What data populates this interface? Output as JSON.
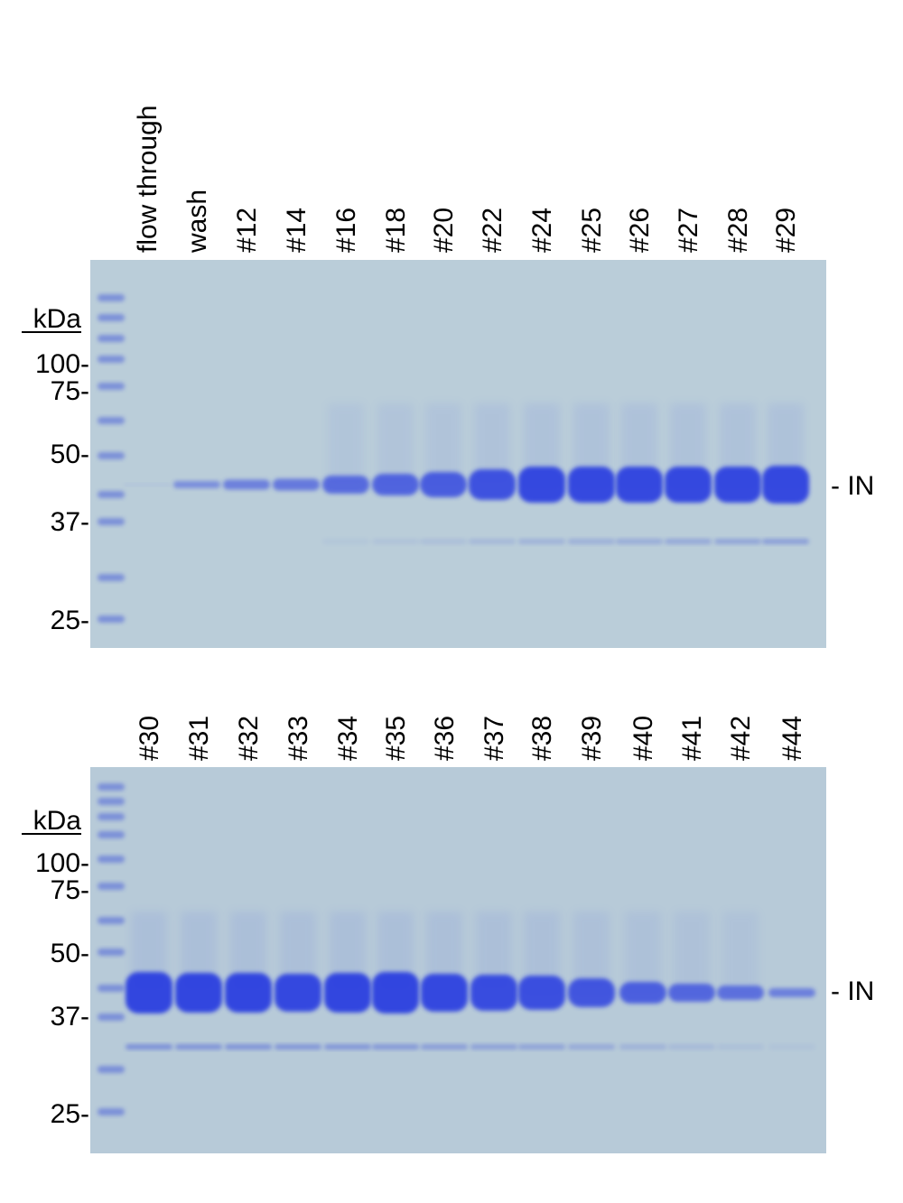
{
  "gels": [
    {
      "lanes": [
        "flow through",
        "wash",
        "#12",
        "#14",
        "#16",
        "#18",
        "#20",
        "#22",
        "#24",
        "#25",
        "#26",
        "#27",
        "#28",
        "#29"
      ],
      "markers": {
        "unit": "kDa",
        "labels": [
          "100-",
          "75-",
          "50-",
          "37-",
          "25-"
        ]
      },
      "band_label": "- IN"
    },
    {
      "lanes": [
        "#30",
        "#31",
        "#32",
        "#33",
        "#34",
        "#35",
        "#36",
        "#37",
        "#38",
        "#39",
        "#40",
        "#41",
        "#42",
        "#44"
      ],
      "markers": {
        "unit": "kDa",
        "labels": [
          "100-",
          "75-",
          "50-",
          "37-",
          "25-"
        ]
      },
      "band_label": "- IN"
    }
  ]
}
